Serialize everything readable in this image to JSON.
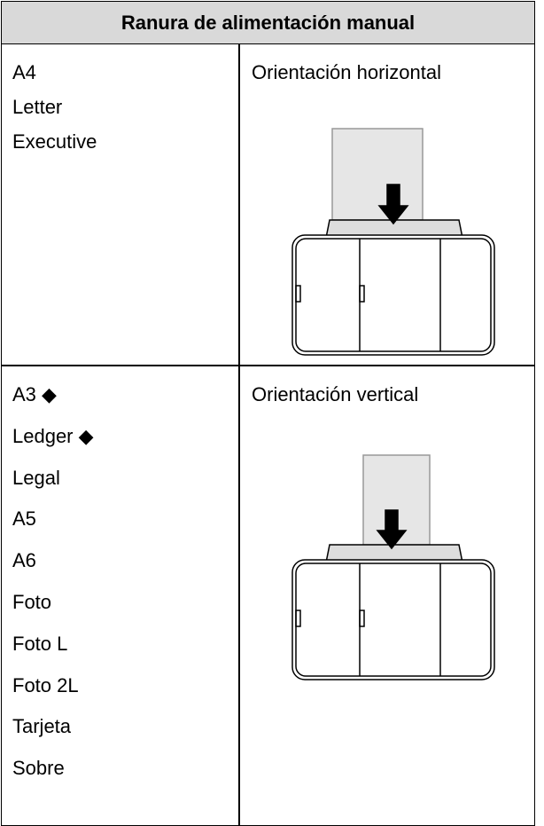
{
  "header": {
    "title": "Ranura de alimentación manual"
  },
  "table": {
    "rows": [
      {
        "items": [
          "A4",
          "Letter",
          "Executive"
        ],
        "orientation": "Orientación horizontal"
      },
      {
        "items": [
          "A3 ◆",
          "Ledger ◆",
          "Legal",
          "A5",
          "A6",
          "Foto",
          "Foto L",
          "Foto 2L",
          "Tarjeta",
          "Sobre"
        ],
        "orientation": "Orientación vertical"
      }
    ]
  }
}
